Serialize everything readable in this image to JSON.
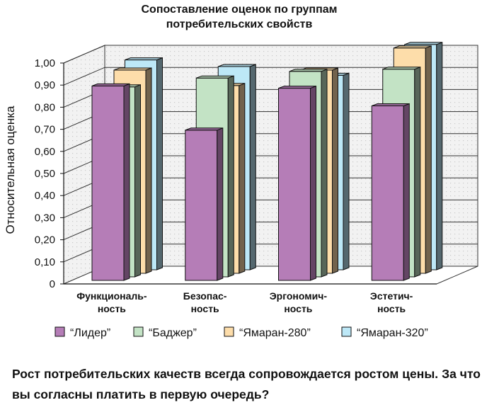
{
  "chart_data": {
    "type": "bar",
    "title": [
      "Сопоставление оценок по группам",
      "потребительских свойств"
    ],
    "ylabel": "Относительная оценка",
    "ylim": [
      0,
      1.0
    ],
    "yticks": [
      "0",
      "0,10",
      "0,20",
      "0,30",
      "0,40",
      "0,50",
      "0,60",
      "0,70",
      "0,80",
      "0,90",
      "1,00"
    ],
    "categories": [
      [
        "Функциональ-",
        "ность"
      ],
      [
        "Безопас-",
        "ность"
      ],
      [
        "Эргономич-",
        "ность"
      ],
      [
        "Эстетич-",
        "ность"
      ]
    ],
    "series": [
      {
        "name": "“Лидер”",
        "color": "#B57DB7",
        "values": [
          0.88,
          0.68,
          0.87,
          0.79
        ]
      },
      {
        "name": "“Баджер”",
        "color": "#C3E3C5",
        "values": [
          0.86,
          0.9,
          0.93,
          0.94
        ]
      },
      {
        "name": "“Ямаран-280”",
        "color": "#FDDDAA",
        "values": [
          0.92,
          0.85,
          0.92,
          1.02
        ]
      },
      {
        "name": "“Ямаран-320”",
        "color": "#BDE8F7",
        "values": [
          0.95,
          0.92,
          0.88,
          1.02
        ]
      }
    ],
    "grid": true,
    "legend": "bottom"
  },
  "question": "Рост потребительских качеств всегда сопровождается ростом цены. За что вы согласны платить в первую очередь?"
}
